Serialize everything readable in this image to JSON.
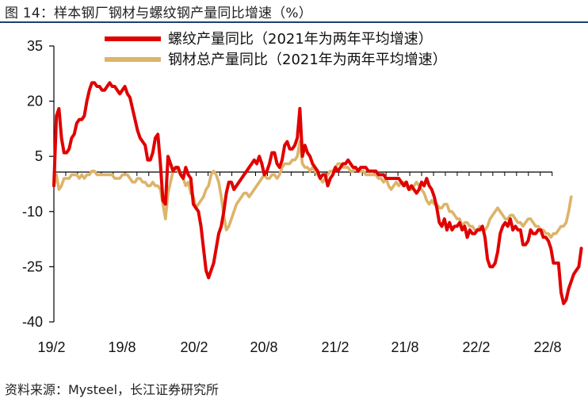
{
  "header": {
    "title": "图 14：样本钢厂钢材与螺纹钢产量同比增速（%）"
  },
  "footer": {
    "source": "资料来源：Mysteel，长江证券研究所"
  },
  "colors": {
    "rebar": "#e00000",
    "steel_total": "#dcb46a",
    "axis": "#000000",
    "title_rule": "#1f3f6e"
  },
  "chart_data": {
    "type": "line",
    "title": "",
    "xlabel": "",
    "ylabel": "",
    "ylim": [
      -40,
      35
    ],
    "yticks": [
      35,
      20,
      5,
      -10,
      -25,
      -40
    ],
    "xtick_labels": [
      "19/2",
      "19/8",
      "20/2",
      "20/8",
      "21/2",
      "21/8",
      "22/2",
      "22/8"
    ],
    "grid": false,
    "legend_position": "top-center",
    "x_unit": "weekly observations (index 0 ≈ 19/2)",
    "series": [
      {
        "name": "螺纹产量同比（2021年为两年平均增速）",
        "color": "#e00000",
        "values": [
          -3,
          16,
          18,
          10,
          6,
          6,
          7,
          10,
          11,
          14,
          15,
          15,
          16,
          20,
          23,
          25,
          25,
          24,
          24,
          23,
          23,
          24,
          25,
          24,
          24,
          23,
          22,
          23,
          24,
          22,
          21,
          18,
          15,
          12,
          10,
          9,
          8,
          4,
          4,
          6,
          10,
          11,
          3,
          -7,
          -8,
          5,
          3,
          1,
          2,
          2,
          0,
          -1,
          2,
          0,
          -1,
          -8,
          -9,
          -10,
          -14,
          -20,
          -26,
          -28,
          -26,
          -24,
          -20,
          -16,
          -14,
          -10,
          -5,
          -2,
          -2,
          -4,
          -3,
          -2,
          -1,
          0,
          1,
          2,
          3,
          4,
          3,
          5,
          3,
          0,
          1,
          3,
          6,
          6,
          3,
          2,
          4,
          8,
          9,
          7,
          7,
          8,
          10,
          18,
          5,
          8,
          6,
          5,
          3,
          2,
          1,
          -1,
          0,
          0,
          -3,
          -1,
          0,
          2,
          1,
          2,
          3,
          3,
          4,
          3,
          2,
          2,
          1,
          2,
          2,
          2,
          1,
          1,
          1,
          1,
          0,
          0,
          0,
          -1,
          -1,
          -1,
          -1,
          -1,
          -1,
          -2,
          -3,
          -2,
          -4,
          -3,
          -4,
          -5,
          -4,
          -2,
          -3,
          -1,
          -3,
          -4,
          -6,
          -9,
          -13,
          -14,
          -12,
          -15,
          -13,
          -15,
          -14,
          -14,
          -13,
          -15,
          -14,
          -17,
          -15,
          -16,
          -16,
          -15,
          -15,
          -14,
          -17,
          -23,
          -25,
          -25,
          -24,
          -21,
          -16,
          -14,
          -13,
          -14,
          -12,
          -15,
          -14,
          -15,
          -15,
          -19,
          -19,
          -18,
          -15,
          -16,
          -16,
          -15,
          -15,
          -17,
          -17,
          -18,
          -20,
          -24,
          -24,
          -24,
          -32,
          -35,
          -34,
          -31,
          -29,
          -27,
          -26,
          -25,
          -20
        ]
      },
      {
        "name": "钢材总产量同比（2021年为两年平均增速）",
        "color": "#dcb46a",
        "values": [
          -3,
          0,
          -4,
          -3,
          -1,
          -1,
          -1,
          0,
          0,
          0,
          -1,
          0,
          -1,
          0,
          0,
          1,
          1,
          0,
          0,
          0,
          0,
          0,
          0,
          0,
          -1,
          -1,
          -1,
          0,
          0,
          0,
          -1,
          -2,
          -2,
          -1,
          -1,
          -2,
          -2,
          -3,
          -3,
          -2,
          -3,
          -3,
          -4,
          -8,
          -12,
          -5,
          -2,
          1,
          2,
          1,
          0,
          -1,
          -3,
          -2,
          -5,
          -6,
          -9,
          -8,
          -7,
          -6,
          -4,
          -3,
          0,
          1,
          0,
          -2,
          -6,
          -11,
          -15,
          -14,
          -12,
          -10,
          -8,
          -7,
          -6,
          -5,
          -5,
          -6,
          -5,
          -4,
          -3,
          -2,
          -1,
          0,
          -1,
          -1,
          0,
          0,
          -1,
          0,
          2,
          3,
          3,
          3,
          4,
          4,
          5,
          9,
          3,
          2,
          2,
          1,
          2,
          1,
          0,
          -1,
          -2,
          -1,
          0,
          1,
          1,
          2,
          3,
          3,
          2,
          2,
          2,
          1,
          1,
          2,
          1,
          1,
          1,
          0,
          0,
          0,
          0,
          0,
          -1,
          -1,
          -2,
          -1,
          -3,
          -4,
          -3,
          -2,
          -3,
          -2,
          -2,
          -3,
          -4,
          -4,
          -3,
          -2,
          -3,
          -4,
          -5,
          -7,
          -8,
          -7,
          -8,
          -8,
          -9,
          -9,
          -8,
          -8,
          -10,
          -10,
          -11,
          -12,
          -12,
          -14,
          -13,
          -13,
          -14,
          -14,
          -15,
          -15,
          -14,
          -15,
          -15,
          -14,
          -12,
          -11,
          -10,
          -9,
          -10,
          -11,
          -12,
          -12,
          -11,
          -11,
          -12,
          -13,
          -13,
          -14,
          -13,
          -12,
          -12,
          -13,
          -14,
          -14,
          -15,
          -15,
          -16,
          -16,
          -17,
          -16,
          -16,
          -15,
          -14,
          -14,
          -13,
          -10,
          -6
        ]
      }
    ]
  }
}
